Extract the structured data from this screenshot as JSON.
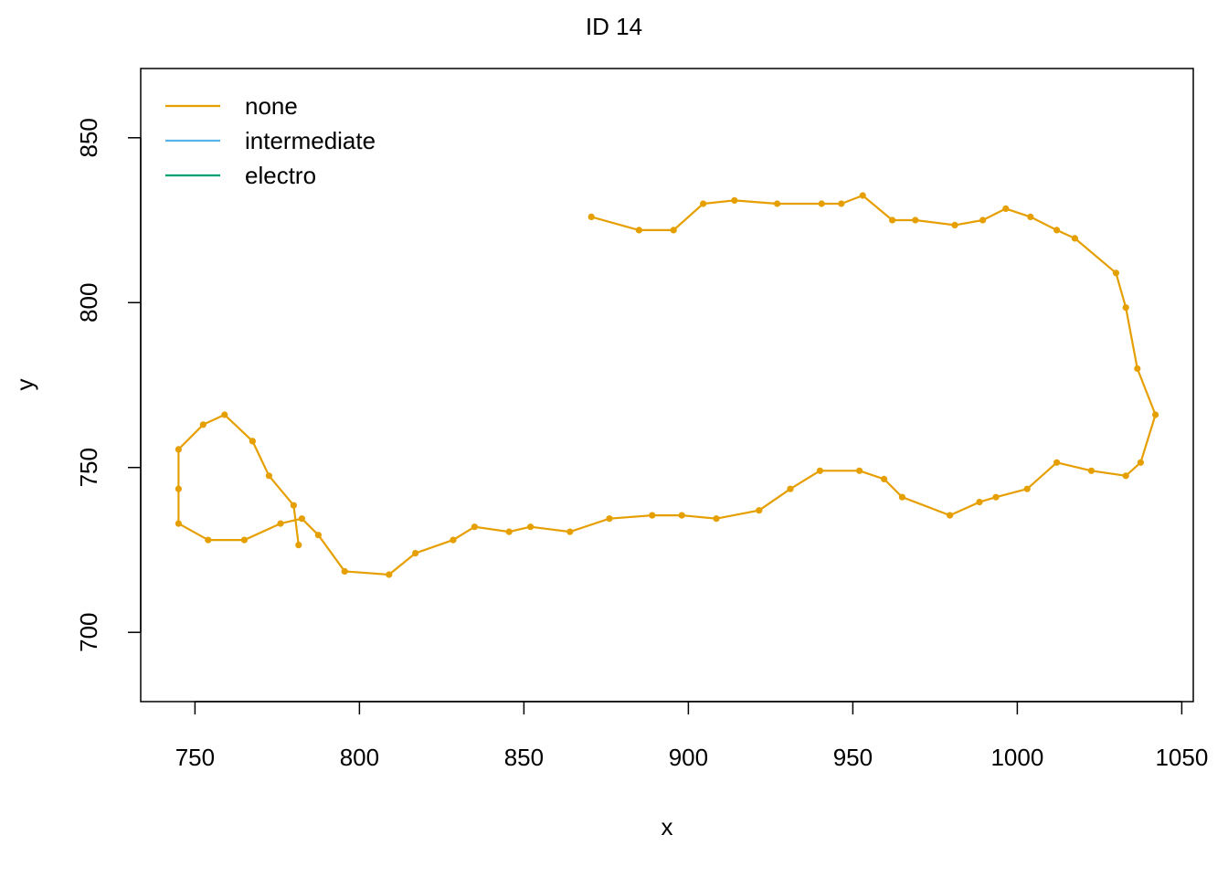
{
  "chart_data": {
    "type": "line",
    "title": "ID 14",
    "xlabel": "x",
    "ylabel": "y",
    "xlim": [
      733.5,
      1053.5
    ],
    "ylim": [
      679,
      871
    ],
    "xticks": [
      750,
      800,
      850,
      900,
      950,
      1000,
      1050
    ],
    "yticks": [
      700,
      750,
      800,
      850
    ],
    "grid": false,
    "legend_position": "top-left",
    "legend": [
      {
        "name": "none",
        "color": "#E69F00"
      },
      {
        "name": "intermediate",
        "color": "#56B4E9"
      },
      {
        "name": "electro",
        "color": "#009E73"
      }
    ],
    "series": [
      {
        "name": "none",
        "color": "#E69F00",
        "points": [
          [
            870.5,
            826
          ],
          [
            885,
            822
          ],
          [
            895.5,
            822
          ],
          [
            904.5,
            830
          ],
          [
            914,
            831
          ],
          [
            927,
            830
          ],
          [
            940.5,
            830
          ],
          [
            946.5,
            830
          ],
          [
            953,
            832.5
          ],
          [
            962,
            825
          ],
          [
            969,
            825
          ],
          [
            981,
            823.5
          ],
          [
            989.5,
            825
          ],
          [
            996.5,
            828.5
          ],
          [
            1004,
            826
          ],
          [
            1012,
            822
          ],
          [
            1017.5,
            819.5
          ],
          [
            1030,
            809
          ],
          [
            1033,
            798.5
          ],
          [
            1036.5,
            780
          ],
          [
            1042,
            766
          ],
          [
            1037.5,
            751.5
          ],
          [
            1033,
            747.5
          ],
          [
            1022.5,
            749
          ],
          [
            1012,
            751.5
          ],
          [
            1003,
            743.5
          ],
          [
            993.5,
            741
          ],
          [
            988.5,
            739.5
          ],
          [
            979.5,
            735.5
          ],
          [
            965,
            741
          ],
          [
            959.5,
            746.5
          ],
          [
            952,
            749
          ],
          [
            940,
            749
          ],
          [
            931,
            743.5
          ],
          [
            921.5,
            737
          ],
          [
            908.5,
            734.5
          ],
          [
            898,
            735.5
          ],
          [
            889,
            735.5
          ],
          [
            876,
            734.5
          ],
          [
            864,
            730.5
          ],
          [
            852,
            732
          ],
          [
            845.5,
            730.5
          ],
          [
            835,
            732
          ],
          [
            828.5,
            728
          ],
          [
            817,
            724
          ],
          [
            809,
            717.5
          ],
          [
            795.5,
            718.5
          ],
          [
            787.5,
            729.5
          ],
          [
            782.5,
            734.5
          ],
          [
            776,
            733
          ],
          [
            765,
            728
          ],
          [
            754,
            728
          ],
          [
            745,
            733
          ],
          [
            745,
            743.5
          ],
          [
            745,
            755.5
          ],
          [
            752.5,
            763
          ],
          [
            759,
            766
          ],
          [
            767.5,
            758
          ],
          [
            772.5,
            747.5
          ],
          [
            780,
            738.5
          ],
          [
            781.5,
            726.5
          ]
        ]
      }
    ]
  }
}
